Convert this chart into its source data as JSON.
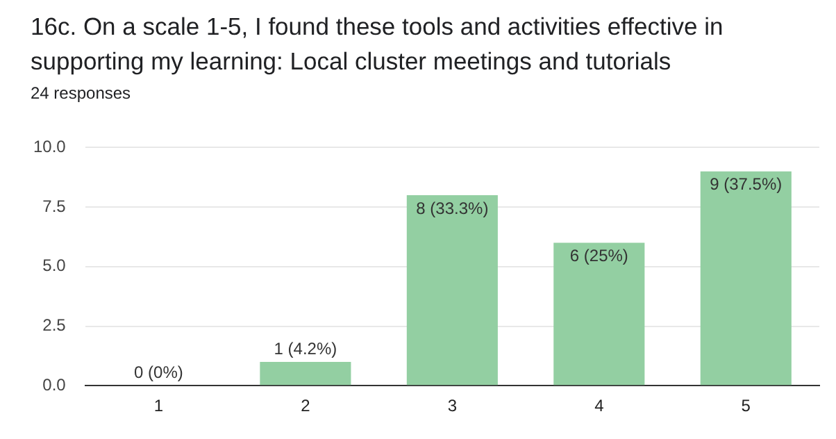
{
  "chart_data": {
    "type": "bar",
    "title": "16c. On a scale 1-5, I found these tools and activities effective in supporting my learning: Local cluster meetings and tutorials",
    "subtitle": "24 responses",
    "categories": [
      "1",
      "2",
      "3",
      "4",
      "5"
    ],
    "values": [
      0,
      1,
      8,
      6,
      9
    ],
    "value_labels": [
      "0 (0%)",
      "1 (4.2%)",
      "8 (33.3%)",
      "6 (25%)",
      "9 (37.5%)"
    ],
    "color": "#93cfa2",
    "ylim": [
      0,
      10
    ],
    "yticks": [
      {
        "value": 0,
        "label": "0.0"
      },
      {
        "value": 2.5,
        "label": "2.5"
      },
      {
        "value": 5,
        "label": "5.0"
      },
      {
        "value": 7.5,
        "label": "7.5"
      },
      {
        "value": 10,
        "label": "10.0"
      }
    ],
    "grid": "y",
    "legend": false
  }
}
